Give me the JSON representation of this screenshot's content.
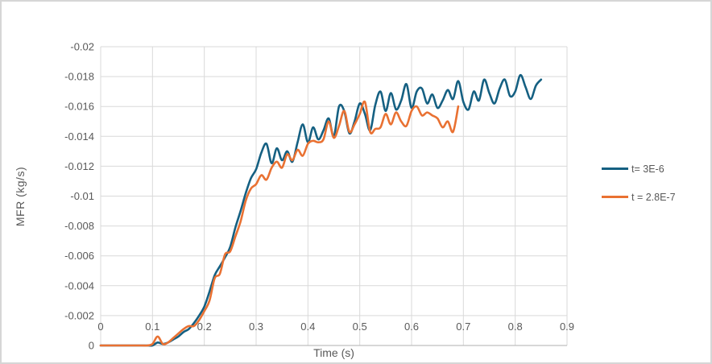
{
  "colors": {
    "background": "#ffffff",
    "frame_border": "#d6d6d6",
    "gridline": "#d9d9d9",
    "axis_line": "#bfbfbf",
    "tick_text": "#595959",
    "series_teal": "#156082",
    "series_orange": "#E97132"
  },
  "axes": {
    "x_title": "Time (s)",
    "y_title": "MFR (kg/s)"
  },
  "chart_data": {
    "type": "line",
    "title": "",
    "xlabel": "Time (s)",
    "ylabel": "MFR (kg/s)",
    "xlim": [
      0,
      0.9
    ],
    "ylim_bottom": 0,
    "ylim_top": -0.02,
    "y_axis_reversed": true,
    "grid": true,
    "legend_position": "right",
    "x_ticks": [
      0,
      0.1,
      0.2,
      0.3,
      0.4,
      0.5,
      0.6,
      0.7,
      0.8,
      0.9
    ],
    "x_tick_labels": [
      "0",
      "0.1",
      "0.2",
      "0.3",
      "0.4",
      "0.5",
      "0.6",
      "0.7",
      "0.8",
      "0.9"
    ],
    "y_ticks": [
      0,
      -0.002,
      -0.004,
      -0.006,
      -0.008,
      -0.01,
      -0.012,
      -0.014,
      -0.016,
      -0.018,
      -0.02
    ],
    "y_tick_labels": [
      "0",
      "-0.002",
      "-0.004",
      "-0.006",
      "-0.008",
      "-0.01",
      "-0.012",
      "-0.014",
      "-0.016",
      "-0.018",
      "-0.02"
    ],
    "series": [
      {
        "name": "t= 3E-6",
        "color": "#156082",
        "x_start": 0,
        "x_step": 0.01,
        "values": [
          0,
          0,
          0,
          0,
          0,
          0,
          0,
          0,
          0,
          0,
          0,
          -0.0002,
          -0.0001,
          -0.0002,
          -0.0004,
          -0.0006,
          -0.0009,
          -0.0011,
          -0.0015,
          -0.002,
          -0.0026,
          -0.0036,
          -0.0047,
          -0.0053,
          -0.0059,
          -0.0066,
          -0.0079,
          -0.009,
          -0.0102,
          -0.0112,
          -0.0118,
          -0.0129,
          -0.0135,
          -0.0122,
          -0.0132,
          -0.0124,
          -0.013,
          -0.0123,
          -0.0136,
          -0.0148,
          -0.0136,
          -0.0146,
          -0.0138,
          -0.0144,
          -0.0152,
          -0.014,
          -0.016,
          -0.0157,
          -0.0142,
          -0.015,
          -0.0162,
          -0.0155,
          -0.0144,
          -0.0161,
          -0.017,
          -0.0157,
          -0.0169,
          -0.0158,
          -0.0164,
          -0.0175,
          -0.0159,
          -0.017,
          -0.0172,
          -0.0162,
          -0.0168,
          -0.0159,
          -0.0164,
          -0.0171,
          -0.0165,
          -0.0177,
          -0.0163,
          -0.0158,
          -0.017,
          -0.0164,
          -0.0178,
          -0.0169,
          -0.0162,
          -0.0172,
          -0.0178,
          -0.0167,
          -0.017,
          -0.0181,
          -0.0173,
          -0.0165,
          -0.0174,
          -0.0178
        ]
      },
      {
        "name": "t = 2.8E-7",
        "color": "#E97132",
        "x_start": 0,
        "x_step": 0.01,
        "values": [
          0,
          0,
          0,
          0,
          0,
          0,
          0,
          0,
          0,
          0,
          -0.0001,
          -0.0006,
          -0.0001,
          -0.0002,
          -0.0005,
          -0.0008,
          -0.0011,
          -0.0013,
          -0.0013,
          -0.0017,
          -0.0023,
          -0.003,
          -0.0045,
          -0.0048,
          -0.0061,
          -0.0063,
          -0.0073,
          -0.0083,
          -0.0097,
          -0.0105,
          -0.0108,
          -0.0114,
          -0.0111,
          -0.0119,
          -0.0123,
          -0.0119,
          -0.0128,
          -0.0124,
          -0.0131,
          -0.0127,
          -0.0135,
          -0.0137,
          -0.0136,
          -0.0138,
          -0.015,
          -0.0139,
          -0.0147,
          -0.0157,
          -0.0143,
          -0.0148,
          -0.0155,
          -0.0163,
          -0.0143,
          -0.0145,
          -0.0146,
          -0.0155,
          -0.0148,
          -0.0156,
          -0.015,
          -0.0147,
          -0.0157,
          -0.016,
          -0.0154,
          -0.0156,
          -0.0154,
          -0.0152,
          -0.0146,
          -0.015,
          -0.0143,
          -0.016
        ]
      }
    ]
  }
}
